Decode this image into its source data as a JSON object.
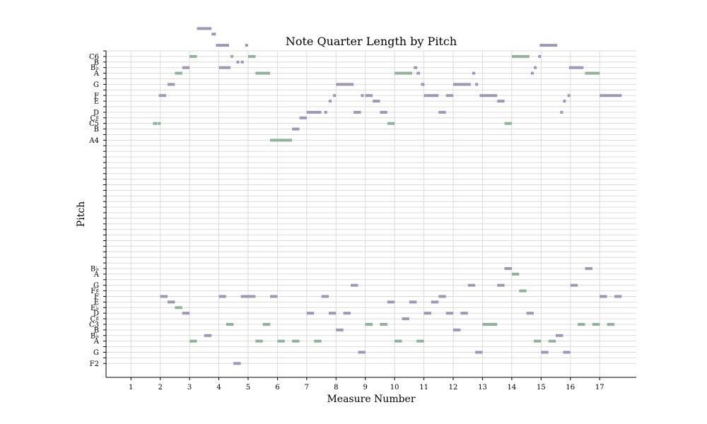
{
  "chart_data": {
    "type": "scatter",
    "title": "Note Quarter Length by Pitch",
    "xlabel": "Measure Number",
    "ylabel": "Pitch",
    "xlim": [
      0.15,
      18.25
    ],
    "ylim": [
      -2.5,
      56
    ],
    "grid": true,
    "x_ticks": [
      1,
      2,
      3,
      4,
      5,
      6,
      7,
      8,
      9,
      10,
      11,
      12,
      13,
      14,
      15,
      16,
      17
    ],
    "y_ticks": [
      {
        "pitch": 0,
        "label": "F2"
      },
      {
        "pitch": 1,
        "label": ""
      },
      {
        "pitch": 2,
        "label": "G"
      },
      {
        "pitch": 3,
        "label": ""
      },
      {
        "pitch": 4,
        "label": "A"
      },
      {
        "pitch": 5,
        "label": "B♭"
      },
      {
        "pitch": 6,
        "label": "B"
      },
      {
        "pitch": 7,
        "label": "C3"
      },
      {
        "pitch": 8,
        "label": "C♯"
      },
      {
        "pitch": 9,
        "label": "D"
      },
      {
        "pitch": 10,
        "label": "E♭"
      },
      {
        "pitch": 11,
        "label": "E"
      },
      {
        "pitch": 12,
        "label": "F"
      },
      {
        "pitch": 13,
        "label": "F♯"
      },
      {
        "pitch": 14,
        "label": "G"
      },
      {
        "pitch": 15,
        "label": ""
      },
      {
        "pitch": 16,
        "label": "A"
      },
      {
        "pitch": 17,
        "label": "B♭"
      },
      {
        "pitch": 18,
        "label": ""
      },
      {
        "pitch": 19,
        "label": ""
      },
      {
        "pitch": 20,
        "label": ""
      },
      {
        "pitch": 21,
        "label": ""
      },
      {
        "pitch": 22,
        "label": ""
      },
      {
        "pitch": 23,
        "label": ""
      },
      {
        "pitch": 24,
        "label": ""
      },
      {
        "pitch": 25,
        "label": ""
      },
      {
        "pitch": 26,
        "label": ""
      },
      {
        "pitch": 27,
        "label": ""
      },
      {
        "pitch": 28,
        "label": ""
      },
      {
        "pitch": 29,
        "label": ""
      },
      {
        "pitch": 30,
        "label": ""
      },
      {
        "pitch": 31,
        "label": ""
      },
      {
        "pitch": 32,
        "label": ""
      },
      {
        "pitch": 33,
        "label": ""
      },
      {
        "pitch": 34,
        "label": ""
      },
      {
        "pitch": 35,
        "label": ""
      },
      {
        "pitch": 36,
        "label": ""
      },
      {
        "pitch": 37,
        "label": ""
      },
      {
        "pitch": 38,
        "label": ""
      },
      {
        "pitch": 39,
        "label": ""
      },
      {
        "pitch": 40,
        "label": "A4"
      },
      {
        "pitch": 41,
        "label": ""
      },
      {
        "pitch": 42,
        "label": "B"
      },
      {
        "pitch": 43,
        "label": "C5"
      },
      {
        "pitch": 44,
        "label": "C♯"
      },
      {
        "pitch": 45,
        "label": "D"
      },
      {
        "pitch": 46,
        "label": ""
      },
      {
        "pitch": 47,
        "label": "E"
      },
      {
        "pitch": 48,
        "label": "F"
      },
      {
        "pitch": 49,
        "label": ""
      },
      {
        "pitch": 50,
        "label": "G"
      },
      {
        "pitch": 51,
        "label": ""
      },
      {
        "pitch": 52,
        "label": "A"
      },
      {
        "pitch": 53,
        "label": "B♭"
      },
      {
        "pitch": 54,
        "label": "B"
      },
      {
        "pitch": 55,
        "label": "C6"
      },
      {
        "pitch": 56,
        "label": ""
      },
      {
        "pitch": 57,
        "label": "D"
      },
      {
        "pitch": 58,
        "label": ""
      },
      {
        "pitch": 59,
        "label": "E"
      },
      {
        "pitch": 60,
        "label": "F"
      }
    ],
    "colors": {
      "purple": "#9e97b8",
      "green": "#8fb39a",
      "grid": "#dcdcdc",
      "axis": "#000000"
    },
    "series": [
      {
        "color": "purple",
        "notes": [
          [
            3.25,
            60,
            0.5
          ],
          [
            3.75,
            59,
            0.15
          ],
          [
            3.9,
            57,
            0.45
          ],
          [
            4.9,
            57,
            0.1
          ],
          [
            4.6,
            54,
            0.1
          ],
          [
            4.75,
            54,
            0.1
          ],
          [
            4,
            53,
            0.4
          ],
          [
            2.75,
            53,
            0.25
          ],
          [
            2.25,
            50,
            0.25
          ],
          [
            1.95,
            48,
            0.25
          ],
          [
            7.9,
            48,
            0.1
          ],
          [
            7.75,
            47,
            0.1
          ],
          [
            8,
            50,
            0.6
          ],
          [
            8.85,
            48,
            0.1
          ],
          [
            9,
            48,
            0.25
          ],
          [
            9.25,
            47,
            0.25
          ],
          [
            7,
            45,
            0.5
          ],
          [
            7.6,
            45,
            0.1
          ],
          [
            8.6,
            45,
            0.25
          ],
          [
            9.5,
            45,
            0.25
          ],
          [
            6.75,
            44,
            0.25
          ],
          [
            6.5,
            42,
            0.25
          ],
          [
            10.65,
            53,
            0.12
          ],
          [
            10.75,
            52,
            0.12
          ],
          [
            10.9,
            50,
            0.12
          ],
          [
            11,
            48,
            0.5
          ],
          [
            11.75,
            48,
            0.25
          ],
          [
            12,
            50,
            0.6
          ],
          [
            12.75,
            50,
            0.1
          ],
          [
            12.9,
            48,
            0.6
          ],
          [
            13.5,
            47,
            0.25
          ],
          [
            11.5,
            45,
            0.25
          ],
          [
            12.65,
            52,
            0.1
          ],
          [
            14.95,
            57,
            0.6
          ],
          [
            14.9,
            55,
            0.1
          ],
          [
            14.75,
            53,
            0.1
          ],
          [
            14.65,
            52,
            0.1
          ],
          [
            15.9,
            48,
            0.1
          ],
          [
            15.75,
            47,
            0.1
          ],
          [
            15.65,
            45,
            0.1
          ],
          [
            15.95,
            53,
            0.5
          ],
          [
            17,
            48,
            0.75
          ],
          [
            13.75,
            17,
            0.25
          ],
          [
            16.5,
            17,
            0.25
          ],
          [
            8.5,
            14,
            0.25
          ],
          [
            12.5,
            14,
            0.25
          ],
          [
            13.5,
            14,
            0.25
          ],
          [
            16,
            14,
            0.25
          ],
          [
            2,
            12,
            0.25
          ],
          [
            4,
            12,
            0.25
          ],
          [
            4.75,
            12,
            0.25
          ],
          [
            5,
            12,
            0.25
          ],
          [
            5.75,
            12,
            0.25
          ],
          [
            7.5,
            12,
            0.25
          ],
          [
            11.5,
            12,
            0.25
          ],
          [
            17,
            12,
            0.25
          ],
          [
            17.5,
            12,
            0.25
          ],
          [
            2.25,
            11,
            0.25
          ],
          [
            9.75,
            11,
            0.25
          ],
          [
            10.5,
            11,
            0.25
          ],
          [
            11.25,
            11,
            0.25
          ],
          [
            2.75,
            9,
            0.25
          ],
          [
            7,
            9,
            0.25
          ],
          [
            7.75,
            9,
            0.25
          ],
          [
            8.25,
            9,
            0.25
          ],
          [
            11,
            9,
            0.25
          ],
          [
            11.75,
            9,
            0.25
          ],
          [
            12.25,
            9,
            0.25
          ],
          [
            14.5,
            9,
            0.25
          ],
          [
            10.25,
            8,
            0.25
          ],
          [
            8,
            6,
            0.25
          ],
          [
            12,
            6,
            0.25
          ],
          [
            3.5,
            5,
            0.25
          ],
          [
            15.5,
            5,
            0.25
          ],
          [
            8.75,
            2,
            0.25
          ],
          [
            12.75,
            2,
            0.25
          ],
          [
            15,
            2,
            0.25
          ],
          [
            15.75,
            2,
            0.25
          ],
          [
            4.5,
            0,
            0.25
          ]
        ]
      },
      {
        "color": "green",
        "notes": [
          [
            3,
            55,
            0.25
          ],
          [
            4.4,
            55,
            0.1
          ],
          [
            5,
            55,
            0.25
          ],
          [
            14,
            55,
            0.6
          ],
          [
            2.5,
            52,
            0.25
          ],
          [
            5.25,
            52,
            0.5
          ],
          [
            10,
            52,
            0.6
          ],
          [
            16.5,
            52,
            0.5
          ],
          [
            1.75,
            43,
            0.15
          ],
          [
            1.92,
            43,
            0.1
          ],
          [
            9.75,
            43,
            0.25
          ],
          [
            13.75,
            43,
            0.25
          ],
          [
            5.75,
            40,
            0.25
          ],
          [
            6,
            40,
            0.5
          ],
          [
            14,
            16,
            0.25
          ],
          [
            14.25,
            13,
            0.25
          ],
          [
            2.5,
            10,
            0.25
          ],
          [
            4.25,
            7,
            0.25
          ],
          [
            5.5,
            7,
            0.25
          ],
          [
            9,
            7,
            0.25
          ],
          [
            9.5,
            7,
            0.25
          ],
          [
            13,
            7,
            0.5
          ],
          [
            16.25,
            7,
            0.25
          ],
          [
            16.75,
            7,
            0.25
          ],
          [
            17.25,
            7,
            0.25
          ],
          [
            3,
            4,
            0.25
          ],
          [
            5.25,
            4,
            0.25
          ],
          [
            6,
            4,
            0.25
          ],
          [
            6.5,
            4,
            0.25
          ],
          [
            7.25,
            4,
            0.25
          ],
          [
            10,
            4,
            0.25
          ],
          [
            10.75,
            4,
            0.25
          ],
          [
            14.75,
            4,
            0.25
          ],
          [
            15.25,
            4,
            0.25
          ]
        ]
      }
    ]
  }
}
